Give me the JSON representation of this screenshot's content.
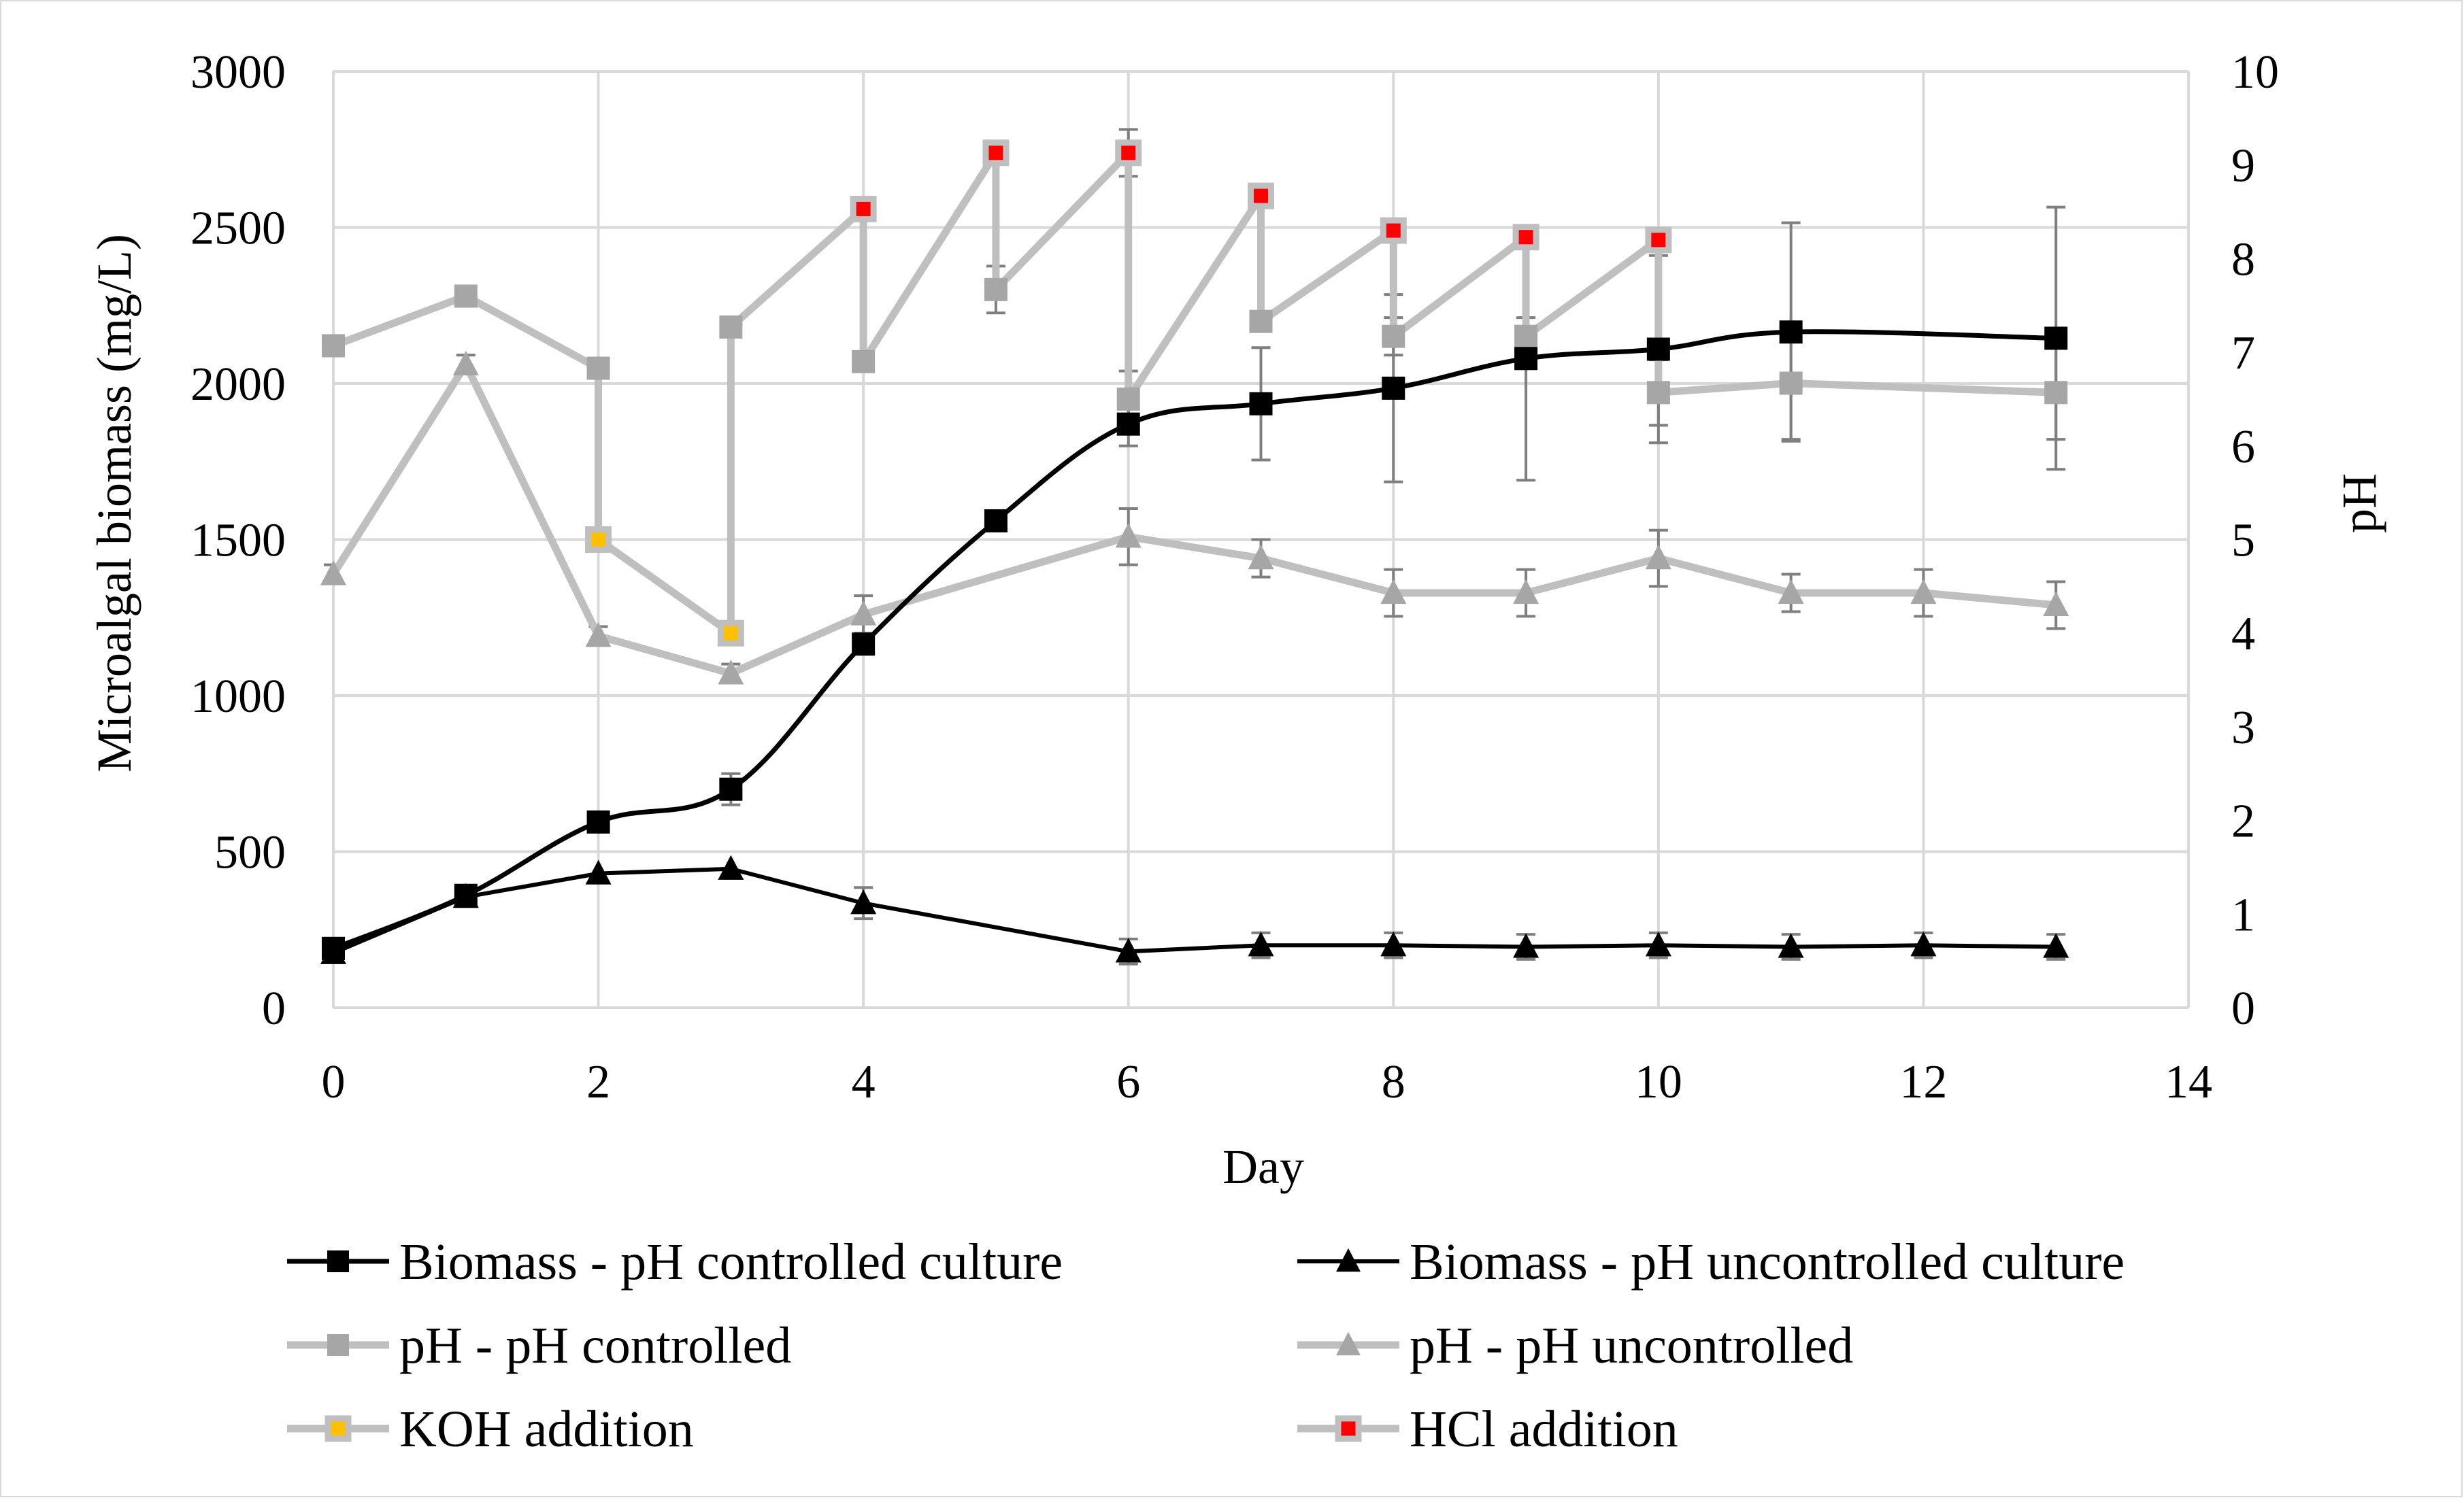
{
  "chart_data": {
    "type": "line",
    "title": "",
    "xlabel": "Day",
    "ylabel_left": "Microalgal biomass (mg/L)",
    "ylabel_right": "pH",
    "xlim": [
      0,
      14
    ],
    "ylim_left": [
      0,
      3000
    ],
    "ylim_right": [
      0,
      10
    ],
    "x_ticks": [
      "0",
      "2",
      "4",
      "6",
      "8",
      "10",
      "12",
      "14"
    ],
    "y_ticks_left": [
      "0",
      "500",
      "1000",
      "1500",
      "2000",
      "2500",
      "3000"
    ],
    "y_ticks_right": [
      "0",
      "1",
      "2",
      "3",
      "4",
      "5",
      "6",
      "7",
      "8",
      "9",
      "10"
    ],
    "grid": "horizontal and vertical major gridlines",
    "legend_position": "bottom",
    "colors": {
      "black": "#000000",
      "light_gray": "#bfbfbf",
      "marker_gray": "#a6a6a6",
      "errorbar_gray": "#7f7f7f",
      "grid": "#d9d9d9",
      "koh": "#ffc000",
      "hcl": "#ff0000"
    },
    "series": [
      {
        "name": "Biomass - pH controlled culture",
        "axis": "left",
        "marker": "square",
        "x": [
          0,
          1,
          2,
          3,
          4,
          5,
          6,
          7,
          8,
          9,
          10,
          11,
          13
        ],
        "y": [
          190,
          360,
          595,
          700,
          1165,
          1560,
          1870,
          1935,
          1985,
          2080,
          2110,
          2165,
          2145
        ],
        "err": [
          0,
          0,
          0,
          50,
          0,
          0,
          70,
          180,
          300,
          390,
          300,
          350,
          420
        ]
      },
      {
        "name": "Biomass - pH uncontrolled culture",
        "axis": "left",
        "marker": "triangle",
        "x": [
          0,
          1,
          2,
          3,
          4,
          6,
          7,
          8,
          9,
          10,
          11,
          12,
          13
        ],
        "y": [
          175,
          355,
          430,
          445,
          335,
          180,
          200,
          200,
          195,
          200,
          195,
          200,
          195
        ],
        "err": [
          0,
          0,
          0,
          0,
          50,
          40,
          40,
          40,
          40,
          40,
          40,
          40,
          40
        ]
      },
      {
        "name": "pH - pH controlled",
        "axis": "right",
        "marker": "square",
        "x": [
          0,
          1,
          2,
          2,
          3,
          3,
          4,
          4,
          5,
          5,
          6,
          6,
          7,
          7,
          8,
          8,
          9,
          9,
          10,
          10,
          11,
          13
        ],
        "y": [
          7.07,
          7.6,
          6.83,
          5.0,
          4.0,
          7.27,
          8.53,
          6.9,
          9.13,
          7.67,
          9.13,
          6.5,
          8.67,
          7.33,
          8.3,
          7.17,
          8.23,
          7.17,
          8.2,
          6.57,
          6.67,
          6.57
        ],
        "err": [
          0,
          0.1,
          0,
          0,
          0,
          0,
          0,
          0,
          0,
          0.25,
          0.25,
          0.3,
          0.1,
          0.1,
          0.1,
          0.2,
          0.1,
          0.2,
          0.1,
          0.35,
          0.6,
          0.5
        ]
      },
      {
        "name": "pH - pH uncontrolled",
        "axis": "right",
        "marker": "triangle",
        "x": [
          0,
          1,
          2,
          3,
          4,
          6,
          7,
          8,
          9,
          10,
          11,
          12,
          13
        ],
        "y": [
          4.63,
          6.87,
          3.97,
          3.57,
          4.2,
          5.03,
          4.8,
          4.43,
          4.43,
          4.8,
          4.43,
          4.43,
          4.3
        ],
        "err": [
          0.1,
          0.1,
          0.1,
          0.1,
          0.2,
          0.3,
          0.2,
          0.25,
          0.25,
          0.3,
          0.2,
          0.25,
          0.25
        ]
      },
      {
        "name": "KOH addition",
        "axis": "right",
        "marker": "square-fill",
        "x": [
          2,
          3
        ],
        "y": [
          5.0,
          4.0
        ]
      },
      {
        "name": "HCl addition",
        "axis": "right",
        "marker": "square-fill",
        "x": [
          4,
          5,
          6,
          7,
          8,
          9,
          10
        ],
        "y": [
          8.53,
          9.13,
          9.13,
          8.67,
          8.3,
          8.23,
          8.2
        ]
      }
    ],
    "legend": [
      "Biomass - pH controlled culture",
      "Biomass - pH uncontrolled culture",
      "pH - pH controlled",
      "pH - pH uncontrolled",
      "KOH addition",
      "HCl addition"
    ]
  }
}
